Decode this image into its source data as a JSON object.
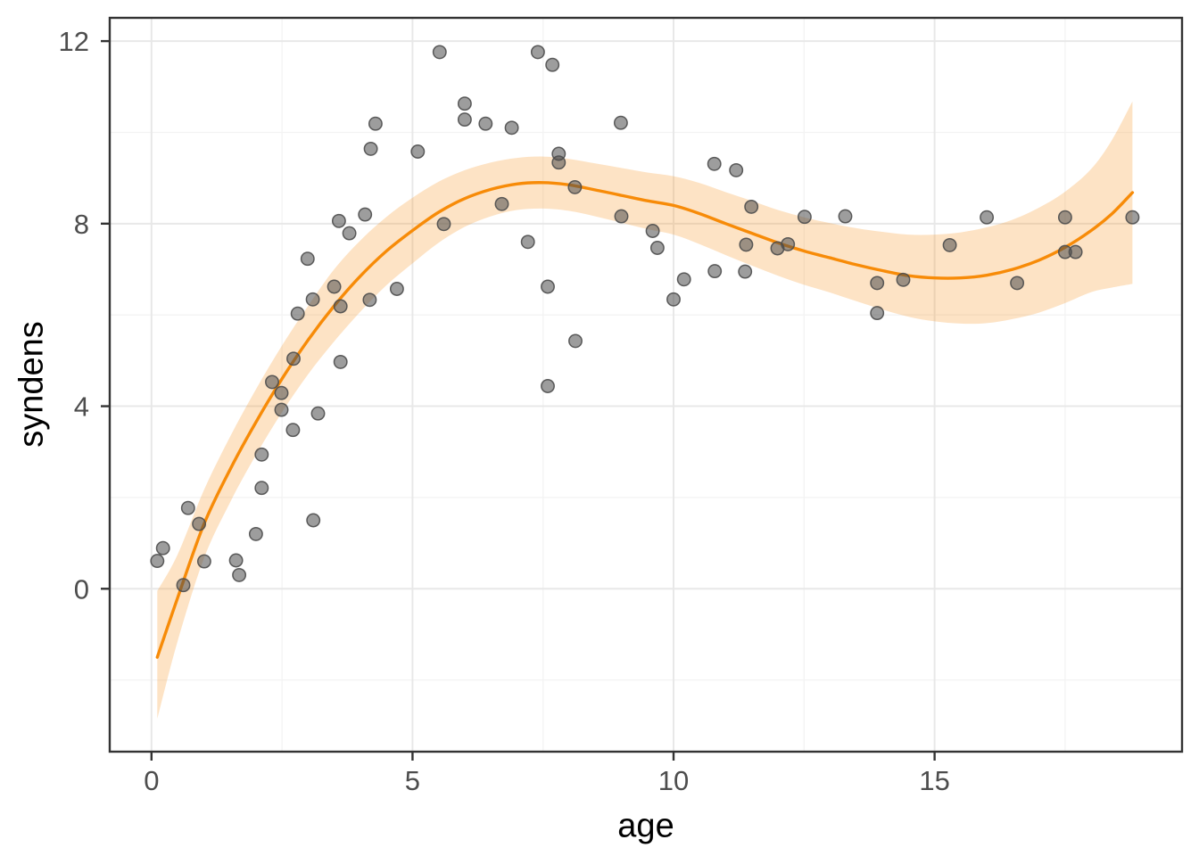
{
  "figure": {
    "background": "#ffffff",
    "panel_background": "#ffffff"
  },
  "chart_data": {
    "type": "scatter",
    "title": "",
    "xlabel": "age",
    "ylabel": "syndens",
    "xlim": [
      -0.8,
      19.74
    ],
    "ylim": [
      -3.57,
      12.51
    ],
    "x_major_ticks": [
      0,
      5,
      10,
      15
    ],
    "x_tick_labels": [
      "0",
      "5",
      "10",
      "15"
    ],
    "x_minor_ticks": [
      2.5,
      7.5,
      12.5,
      17.5
    ],
    "y_major_ticks": [
      0,
      4,
      8,
      12
    ],
    "y_tick_labels": [
      "0",
      "4",
      "8",
      "12"
    ],
    "y_minor_ticks": [
      -2,
      2,
      6,
      10
    ],
    "grid": true,
    "legend": "none",
    "points": [
      [
        0.11,
        0.61
      ],
      [
        0.22,
        0.89
      ],
      [
        0.61,
        0.08
      ],
      [
        0.7,
        1.77
      ],
      [
        0.91,
        1.42
      ],
      [
        1.01,
        0.6
      ],
      [
        1.62,
        0.62
      ],
      [
        1.68,
        0.3
      ],
      [
        2.0,
        1.2
      ],
      [
        2.11,
        2.21
      ],
      [
        2.11,
        2.94
      ],
      [
        2.31,
        4.53
      ],
      [
        2.49,
        4.29
      ],
      [
        2.49,
        3.92
      ],
      [
        2.71,
        3.48
      ],
      [
        2.72,
        5.04
      ],
      [
        2.8,
        6.03
      ],
      [
        2.99,
        7.23
      ],
      [
        3.09,
        6.34
      ],
      [
        3.1,
        1.5
      ],
      [
        3.19,
        3.84
      ],
      [
        3.5,
        6.62
      ],
      [
        3.59,
        8.06
      ],
      [
        3.62,
        6.19
      ],
      [
        3.62,
        4.97
      ],
      [
        3.79,
        7.79
      ],
      [
        4.09,
        8.2
      ],
      [
        4.18,
        6.33
      ],
      [
        4.2,
        9.64
      ],
      [
        4.29,
        10.19
      ],
      [
        4.7,
        6.57
      ],
      [
        5.1,
        9.58
      ],
      [
        5.52,
        11.76
      ],
      [
        5.6,
        7.99
      ],
      [
        6.0,
        10.63
      ],
      [
        6.0,
        10.28
      ],
      [
        6.4,
        10.19
      ],
      [
        6.71,
        8.43
      ],
      [
        6.9,
        10.1
      ],
      [
        7.21,
        7.6
      ],
      [
        7.4,
        11.76
      ],
      [
        7.59,
        6.62
      ],
      [
        7.59,
        4.44
      ],
      [
        7.68,
        11.48
      ],
      [
        7.8,
        9.53
      ],
      [
        7.8,
        9.34
      ],
      [
        8.11,
        8.8
      ],
      [
        8.12,
        5.43
      ],
      [
        8.99,
        10.21
      ],
      [
        9.0,
        8.16
      ],
      [
        9.6,
        7.84
      ],
      [
        9.69,
        7.47
      ],
      [
        10.0,
        6.34
      ],
      [
        10.2,
        6.78
      ],
      [
        10.79,
        6.96
      ],
      [
        10.78,
        9.31
      ],
      [
        11.2,
        9.17
      ],
      [
        11.37,
        6.95
      ],
      [
        11.39,
        7.54
      ],
      [
        11.49,
        8.37
      ],
      [
        11.99,
        7.46
      ],
      [
        12.19,
        7.55
      ],
      [
        12.51,
        8.15
      ],
      [
        13.29,
        8.16
      ],
      [
        13.9,
        6.7
      ],
      [
        13.9,
        6.04
      ],
      [
        14.4,
        6.77
      ],
      [
        15.29,
        7.53
      ],
      [
        16.0,
        8.14
      ],
      [
        16.58,
        6.7
      ],
      [
        17.5,
        8.14
      ],
      [
        17.5,
        7.38
      ],
      [
        17.7,
        7.38
      ],
      [
        18.79,
        8.14
      ]
    ],
    "smooth": {
      "x": [
        0.11,
        0.5,
        1.0,
        1.5,
        2.0,
        2.5,
        3.0,
        3.5,
        4.0,
        4.5,
        5.0,
        5.5,
        6.0,
        6.5,
        7.0,
        7.5,
        8.0,
        8.5,
        9.0,
        9.5,
        10.0,
        10.5,
        11.0,
        11.5,
        12.0,
        12.5,
        13.0,
        13.5,
        14.0,
        14.5,
        15.0,
        15.5,
        16.0,
        16.5,
        17.0,
        17.5,
        18.0,
        18.4,
        18.79
      ],
      "y": [
        -1.5,
        -0.2,
        1.4,
        2.6,
        3.65,
        4.6,
        5.45,
        6.2,
        6.85,
        7.4,
        7.85,
        8.25,
        8.55,
        8.75,
        8.87,
        8.9,
        8.85,
        8.74,
        8.62,
        8.5,
        8.4,
        8.22,
        8.0,
        7.79,
        7.58,
        7.4,
        7.25,
        7.1,
        6.97,
        6.86,
        6.81,
        6.81,
        6.87,
        7.0,
        7.2,
        7.48,
        7.85,
        8.22,
        8.68
      ],
      "upper": [
        -0.05,
        0.75,
        2.15,
        3.32,
        4.37,
        5.33,
        6.2,
        7.0,
        7.63,
        8.15,
        8.57,
        8.92,
        9.17,
        9.34,
        9.44,
        9.47,
        9.42,
        9.32,
        9.22,
        9.12,
        9.04,
        8.89,
        8.69,
        8.5,
        8.3,
        8.14,
        8.01,
        7.9,
        7.82,
        7.76,
        7.76,
        7.81,
        7.92,
        8.09,
        8.35,
        8.7,
        9.2,
        9.84,
        10.68
      ],
      "lower": [
        -2.85,
        -1.15,
        0.65,
        1.88,
        2.93,
        3.87,
        4.7,
        5.42,
        6.07,
        6.65,
        7.13,
        7.58,
        7.93,
        8.16,
        8.3,
        8.33,
        8.28,
        8.16,
        8.02,
        7.88,
        7.76,
        7.55,
        7.31,
        7.08,
        6.86,
        6.66,
        6.49,
        6.3,
        6.12,
        5.96,
        5.86,
        5.81,
        5.82,
        5.91,
        6.05,
        6.26,
        6.5,
        6.6,
        6.68
      ]
    },
    "colors": {
      "smooth_line": "#F78B08",
      "ribbon_fill": "rgba(247,152,40,0.27)",
      "point_fill": "#4D4D4D",
      "point_fill_opacity": 0.55,
      "point_stroke": "#4D4D4D",
      "point_stroke_opacity": 0.9,
      "grid_major": "#E8E8E8",
      "grid_minor": "#F3F3F3",
      "panel_border": "#333333",
      "tick_mark": "#333333",
      "tick_label": "#4D4D4D",
      "axis_title": "#000000"
    }
  }
}
